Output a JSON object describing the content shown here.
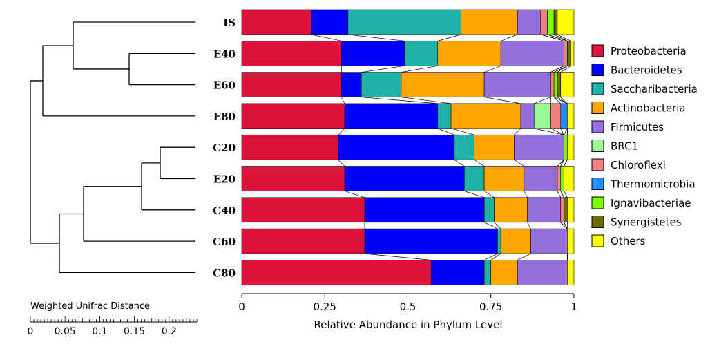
{
  "chart_data": {
    "type": "bar",
    "orientation": "horizontal",
    "stacked": true,
    "normalized": true,
    "categories": [
      "IS",
      "E40",
      "E60",
      "E80",
      "C20",
      "E20",
      "C40",
      "C60",
      "C80"
    ],
    "series": [
      {
        "name": "Proteobacteria",
        "color": "#dc143c",
        "values": [
          0.21,
          0.3,
          0.3,
          0.31,
          0.29,
          0.31,
          0.37,
          0.37,
          0.57
        ]
      },
      {
        "name": "Bacteroidetes",
        "color": "#0000ff",
        "values": [
          0.11,
          0.19,
          0.06,
          0.28,
          0.35,
          0.36,
          0.36,
          0.4,
          0.16
        ]
      },
      {
        "name": "Saccharibacteria",
        "color": "#20b2aa",
        "values": [
          0.34,
          0.1,
          0.12,
          0.04,
          0.06,
          0.06,
          0.03,
          0.01,
          0.02
        ]
      },
      {
        "name": "Actinobacteria",
        "color": "#ffa500",
        "values": [
          0.17,
          0.19,
          0.25,
          0.21,
          0.12,
          0.12,
          0.1,
          0.09,
          0.08
        ]
      },
      {
        "name": "Firmicutes",
        "color": "#9370db",
        "values": [
          0.07,
          0.19,
          0.2,
          0.04,
          0.15,
          0.1,
          0.1,
          0.11,
          0.15
        ]
      },
      {
        "name": "BRC1",
        "color": "#98fb98",
        "values": [
          0.0,
          0.0,
          0.0,
          0.05,
          0.0,
          0.0,
          0.0,
          0.0,
          0.0
        ]
      },
      {
        "name": "Chloroflexi",
        "color": "#f08080",
        "values": [
          0.02,
          0.01,
          0.01,
          0.03,
          0.0,
          0.01,
          0.01,
          0.0,
          0.0
        ]
      },
      {
        "name": "Thermomicrobia",
        "color": "#1e90ff",
        "values": [
          0.0,
          0.0,
          0.0,
          0.02,
          0.0,
          0.0,
          0.0,
          0.0,
          0.0
        ]
      },
      {
        "name": "Ignavibacteriae",
        "color": "#7cfc00",
        "values": [
          0.02,
          0.0,
          0.01,
          0.0,
          0.01,
          0.01,
          0.0,
          0.0,
          0.0
        ]
      },
      {
        "name": "Synergistetes",
        "color": "#6b6b00",
        "values": [
          0.01,
          0.01,
          0.01,
          0.0,
          0.0,
          0.0,
          0.01,
          0.0,
          0.0
        ]
      },
      {
        "name": "Others",
        "color": "#ffff00",
        "values": [
          0.05,
          0.01,
          0.04,
          0.02,
          0.02,
          0.03,
          0.02,
          0.02,
          0.02
        ]
      }
    ],
    "xlabel": "Relative Abundance in Phylum Level",
    "xlim": [
      0,
      1
    ],
    "xticks": [
      0,
      0.25,
      0.5,
      0.75,
      1
    ],
    "xtick_labels": [
      "0",
      "0.25",
      "0.5",
      "0.75",
      "1"
    ],
    "legend_position": "right",
    "grid": false,
    "dendrogram": {
      "title": "Weighted Unifrac Distance",
      "scale_ticks": [
        "0",
        "0.05",
        "0.1",
        "0.15",
        "0.2"
      ],
      "topology": "((IS,(E40,E60)),E80),(((C20,E20),C40),C60),C80"
    }
  }
}
